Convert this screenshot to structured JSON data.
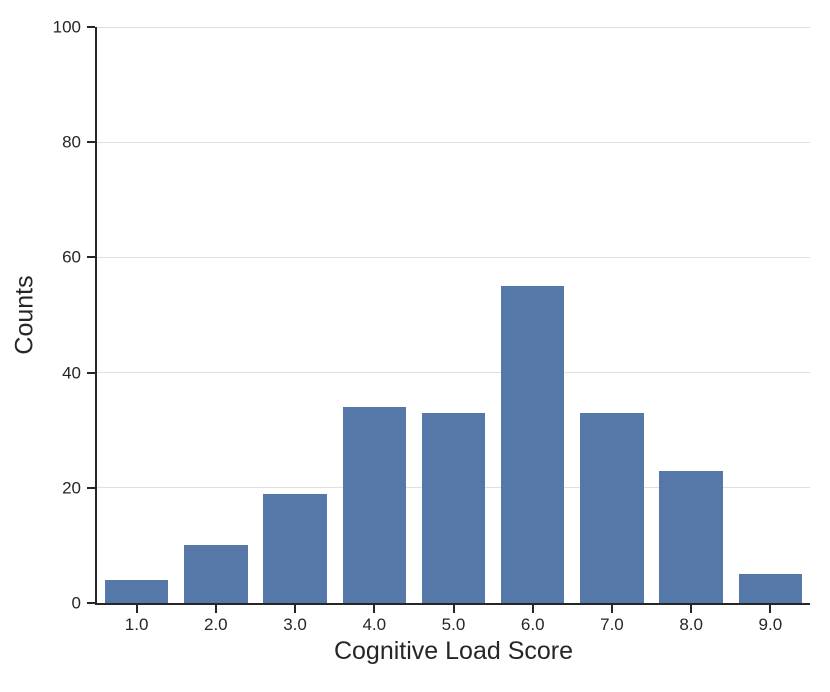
{
  "chart_data": {
    "type": "bar",
    "title": "",
    "xlabel": "Cognitive Load Score",
    "ylabel": "Counts",
    "categories": [
      "1.0",
      "2.0",
      "3.0",
      "4.0",
      "5.0",
      "6.0",
      "7.0",
      "8.0",
      "9.0"
    ],
    "values": [
      4,
      10,
      19,
      34,
      33,
      55,
      33,
      23,
      5
    ],
    "ylim": [
      0,
      100
    ],
    "yticks": [
      0,
      20,
      40,
      60,
      80,
      100
    ],
    "grid": "horizontal-only",
    "legend": "none",
    "spines": [
      "left",
      "bottom"
    ],
    "colors": {
      "bar": "#5578a9",
      "axis": "#262626",
      "gridline": "#e0e0e0",
      "text": "#262626",
      "background": "#ffffff"
    }
  }
}
